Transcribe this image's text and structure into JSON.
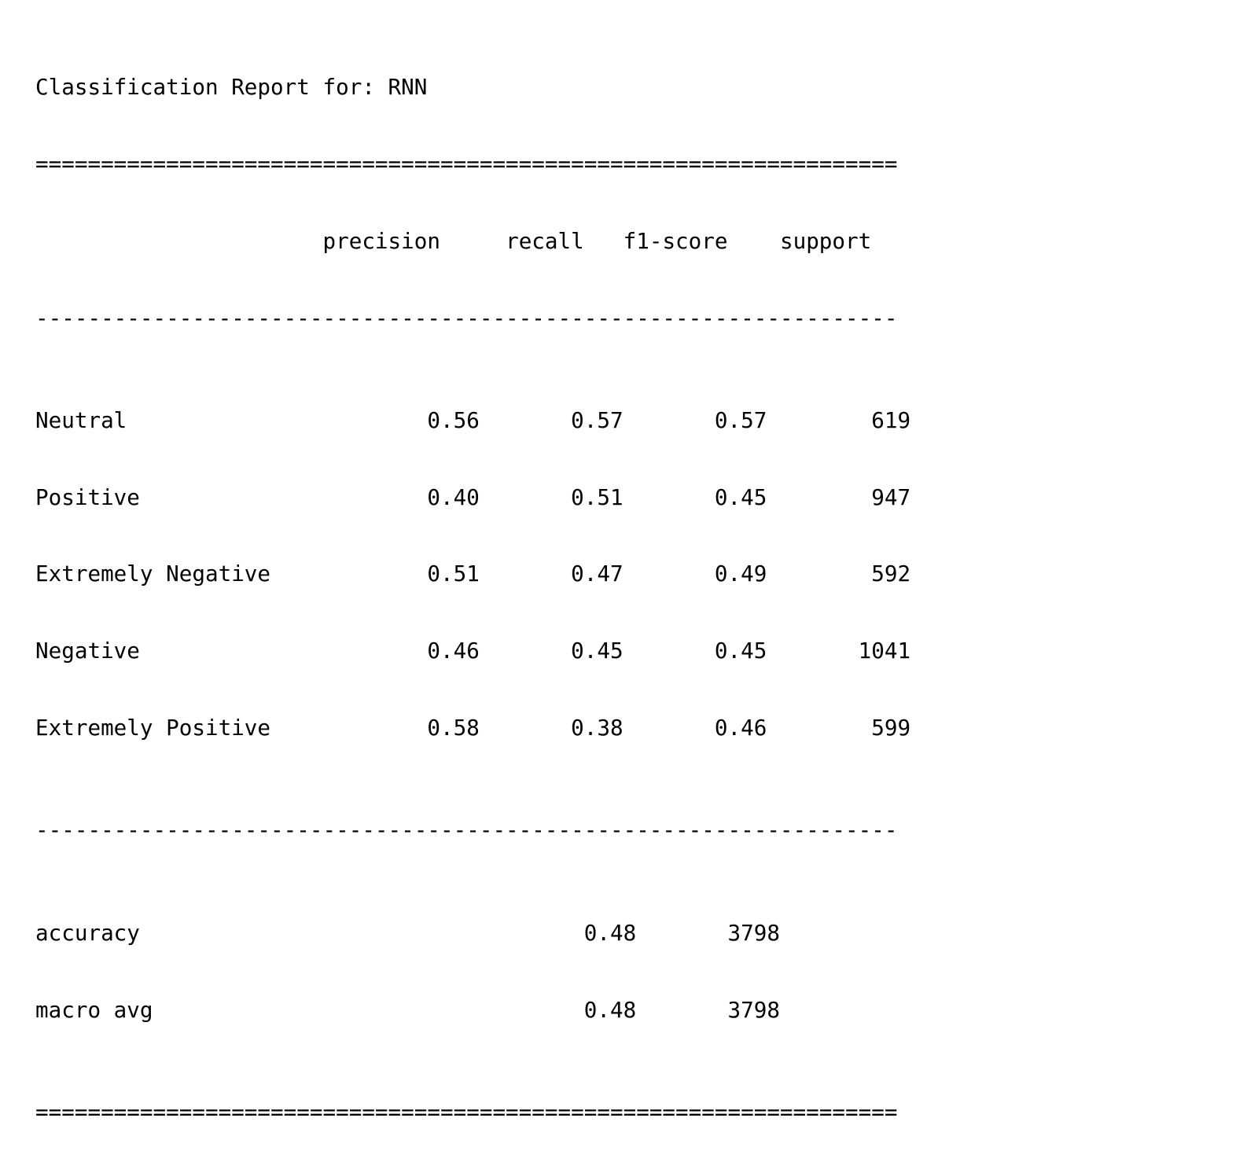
{
  "report": {
    "title": "Classification Report for: RNN",
    "rule_major": "==================================================================",
    "rule_minor": "------------------------------------------------------------------",
    "columns": [
      "precision",
      "recall",
      "f1-score",
      "support"
    ],
    "rows": [
      {
        "label": "Neutral",
        "precision": "0.56",
        "recall": "0.57",
        "f1": "0.57",
        "support": "619"
      },
      {
        "label": "Positive",
        "precision": "0.40",
        "recall": "0.51",
        "f1": "0.45",
        "support": "947"
      },
      {
        "label": "Extremely Negative",
        "precision": "0.51",
        "recall": "0.47",
        "f1": "0.49",
        "support": "592"
      },
      {
        "label": "Negative",
        "precision": "0.46",
        "recall": "0.45",
        "f1": "0.45",
        "support": "1041"
      },
      {
        "label": "Extremely Positive",
        "precision": "0.58",
        "recall": "0.38",
        "f1": "0.46",
        "support": "599"
      }
    ],
    "summary": [
      {
        "label": "accuracy",
        "f1": "0.48",
        "support": "3798"
      },
      {
        "label": "macro avg",
        "f1": "0.48",
        "support": "3798"
      }
    ]
  }
}
